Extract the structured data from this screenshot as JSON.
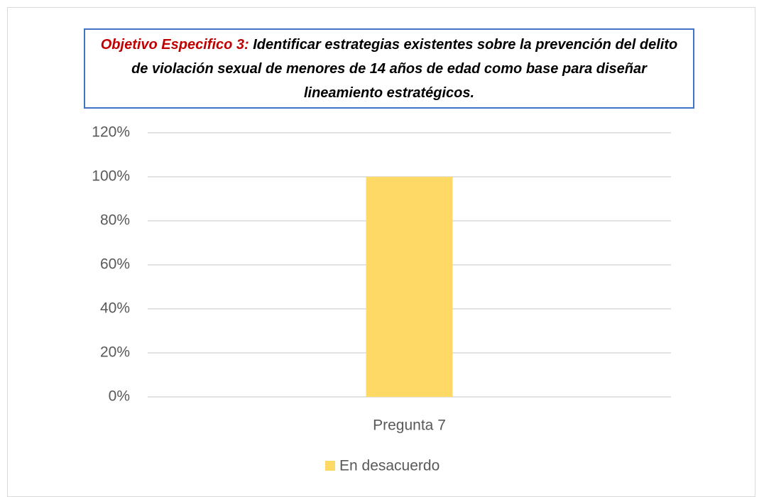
{
  "chart_data": {
    "type": "bar",
    "title_label": "Objetivo Especifico 3:",
    "title": "Identificar estrategias existentes sobre la prevención del delito de violación sexual de menores de 14 años de edad como base para diseñar lineamiento estratégicos.",
    "categories": [
      "Pregunta 7"
    ],
    "series": [
      {
        "name": "En desacuerdo",
        "color": "#ffd966",
        "values": [
          100
        ]
      }
    ],
    "ylim": [
      0,
      120
    ],
    "yticks": [
      {
        "value": 0,
        "label": "0%"
      },
      {
        "value": 20,
        "label": "20%"
      },
      {
        "value": 40,
        "label": "40%"
      },
      {
        "value": 60,
        "label": "60%"
      },
      {
        "value": 80,
        "label": "80%"
      },
      {
        "value": 100,
        "label": "100%"
      },
      {
        "value": 120,
        "label": "120%"
      }
    ],
    "grid": true,
    "legend": "bottom"
  }
}
